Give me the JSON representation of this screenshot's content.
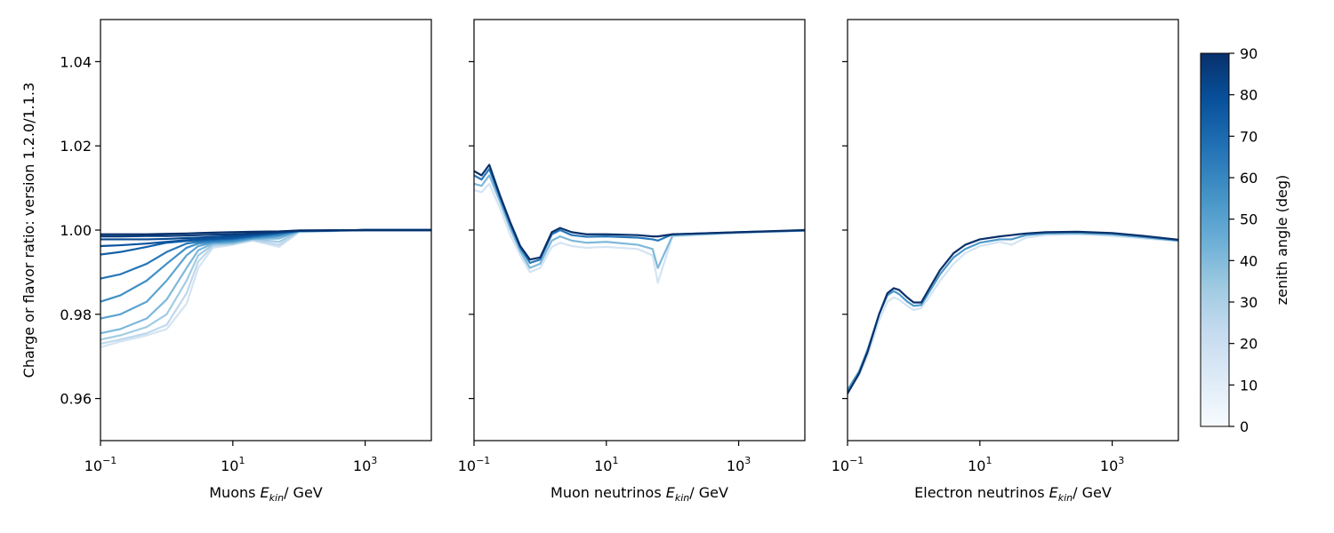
{
  "chart_data": [
    {
      "type": "line",
      "panel": "muons",
      "xscale": "log",
      "xlim": [
        0.1,
        10000
      ],
      "ylim": [
        0.95,
        1.05
      ],
      "xlabel_prefix": "Muons ",
      "xlabel_var": "E",
      "xlabel_sub": "kin",
      "xlabel_suffix": "/ GeV",
      "ylabel": "Charge or flavor ratio: version 1.2.0/1.1.3",
      "xticks": [
        {
          "value": 0.1,
          "base": "10",
          "exp": "−1"
        },
        {
          "value": 10,
          "base": "10",
          "exp": "1"
        },
        {
          "value": 1000,
          "base": "10",
          "exp": "3"
        }
      ],
      "yticks": [
        "0.96",
        "0.98",
        "1.00",
        "1.02",
        "1.04"
      ],
      "x": [
        0.1,
        0.2,
        0.5,
        1,
        2,
        3,
        5,
        10,
        20,
        50,
        100,
        1000,
        10000
      ],
      "series": [
        {
          "zenith": 0,
          "values": [
            0.9722,
            0.9735,
            0.975,
            0.9765,
            0.9825,
            0.991,
            0.9958,
            0.9965,
            0.9975,
            0.996,
            0.9995,
            1.0,
            1.0
          ]
        },
        {
          "zenith": 10,
          "values": [
            0.973,
            0.974,
            0.9755,
            0.9775,
            0.985,
            0.9925,
            0.9962,
            0.9967,
            0.9976,
            0.9965,
            0.9996,
            1.0,
            1.0
          ]
        },
        {
          "zenith": 20,
          "values": [
            0.974,
            0.975,
            0.977,
            0.98,
            0.988,
            0.994,
            0.9965,
            0.9968,
            0.9978,
            0.9972,
            0.9996,
            1.0,
            1.0
          ]
        },
        {
          "zenith": 30,
          "values": [
            0.9755,
            0.9765,
            0.979,
            0.9835,
            0.991,
            0.9952,
            0.9968,
            0.997,
            0.9979,
            0.998,
            0.9997,
            1.0,
            1.0
          ]
        },
        {
          "zenith": 40,
          "values": [
            0.979,
            0.98,
            0.983,
            0.988,
            0.994,
            0.9962,
            0.997,
            0.9972,
            0.998,
            0.9985,
            0.9997,
            1.0,
            1.0
          ]
        },
        {
          "zenith": 50,
          "values": [
            0.983,
            0.9845,
            0.988,
            0.992,
            0.9958,
            0.9968,
            0.9972,
            0.9975,
            0.9982,
            0.9988,
            0.9998,
            1.0,
            1.0
          ]
        },
        {
          "zenith": 60,
          "values": [
            0.9885,
            0.9895,
            0.992,
            0.9948,
            0.9968,
            0.9972,
            0.9975,
            0.9978,
            0.9984,
            0.9991,
            0.9998,
            1.0,
            1.0
          ]
        },
        {
          "zenith": 70,
          "values": [
            0.9942,
            0.9948,
            0.996,
            0.997,
            0.9974,
            0.9976,
            0.9978,
            0.998,
            0.9986,
            0.9993,
            0.9998,
            1.0,
            1.0
          ]
        },
        {
          "zenith": 75,
          "values": [
            0.9962,
            0.9964,
            0.9968,
            0.9972,
            0.9976,
            0.9978,
            0.998,
            0.9982,
            0.9988,
            0.9994,
            0.9998,
            1.0,
            1.0
          ]
        },
        {
          "zenith": 80,
          "values": [
            0.9978,
            0.9978,
            0.9978,
            0.9979,
            0.9981,
            0.9982,
            0.9984,
            0.9986,
            0.999,
            0.9995,
            0.9998,
            1.0,
            1.0
          ]
        },
        {
          "zenith": 85,
          "values": [
            0.9985,
            0.9985,
            0.9986,
            0.9986,
            0.9987,
            0.9988,
            0.9989,
            0.999,
            0.9992,
            0.9996,
            0.9999,
            1.0,
            1.0
          ]
        },
        {
          "zenith": 90,
          "values": [
            0.999,
            0.999,
            0.999,
            0.9991,
            0.9992,
            0.9993,
            0.9994,
            0.9995,
            0.9996,
            0.9997,
            0.9999,
            1.0,
            1.0
          ]
        }
      ]
    },
    {
      "type": "line",
      "panel": "muon-neutrinos",
      "xscale": "log",
      "xlim": [
        0.1,
        10000
      ],
      "ylim": [
        0.95,
        1.05
      ],
      "xlabel_prefix": "Muon neutrinos ",
      "xlabel_var": "E",
      "xlabel_sub": "kin",
      "xlabel_suffix": "/ GeV",
      "xticks": [
        {
          "value": 0.1,
          "base": "10",
          "exp": "−1"
        },
        {
          "value": 10,
          "base": "10",
          "exp": "1"
        },
        {
          "value": 1000,
          "base": "10",
          "exp": "3"
        }
      ],
      "x": [
        0.1,
        0.13,
        0.17,
        0.25,
        0.35,
        0.5,
        0.7,
        1,
        1.5,
        2,
        3,
        5,
        10,
        30,
        50,
        60,
        100,
        1000,
        10000
      ],
      "series": [
        {
          "zenith": 0,
          "values": [
            1.0095,
            1.009,
            1.011,
            1.005,
            0.999,
            0.994,
            0.99,
            0.991,
            0.996,
            0.997,
            0.9962,
            0.9958,
            0.996,
            0.9955,
            0.994,
            0.9875,
            0.9985,
            0.9993,
            0.9998
          ]
        },
        {
          "zenith": 30,
          "values": [
            1.011,
            1.0105,
            1.013,
            1.0065,
            1.0005,
            0.995,
            0.991,
            0.992,
            0.9975,
            0.9985,
            0.9975,
            0.997,
            0.9972,
            0.9965,
            0.9955,
            0.991,
            0.9987,
            0.9994,
            0.9999
          ]
        },
        {
          "zenith": 60,
          "values": [
            1.013,
            1.012,
            1.0145,
            1.0075,
            1.0015,
            0.9958,
            0.9922,
            0.993,
            0.999,
            1.0,
            0.9988,
            0.9984,
            0.9985,
            0.9982,
            0.9978,
            0.9975,
            0.999,
            0.9995,
            0.9999
          ]
        },
        {
          "zenith": 90,
          "values": [
            1.014,
            1.013,
            1.0155,
            1.008,
            1.002,
            0.9962,
            0.993,
            0.9935,
            0.9995,
            1.0005,
            0.9995,
            0.999,
            0.999,
            0.9988,
            0.9985,
            0.9985,
            0.999,
            0.9995,
            1.0
          ]
        }
      ]
    },
    {
      "type": "line",
      "panel": "electron-neutrinos",
      "xscale": "log",
      "xlim": [
        0.1,
        10000
      ],
      "ylim": [
        0.95,
        1.05
      ],
      "xlabel_prefix": "Electron neutrinos ",
      "xlabel_var": "E",
      "xlabel_sub": "kin",
      "xlabel_suffix": "/ GeV",
      "xticks": [
        {
          "value": 0.1,
          "base": "10",
          "exp": "−1"
        },
        {
          "value": 10,
          "base": "10",
          "exp": "1"
        },
        {
          "value": 1000,
          "base": "10",
          "exp": "3"
        }
      ],
      "x": [
        0.1,
        0.15,
        0.2,
        0.3,
        0.4,
        0.5,
        0.6,
        0.8,
        1,
        1.3,
        1.7,
        2.5,
        4,
        6,
        10,
        20,
        30,
        50,
        100,
        300,
        1000,
        3000,
        10000
      ],
      "series": [
        {
          "zenith": 0,
          "values": [
            0.9618,
            0.9655,
            0.97,
            0.9785,
            0.983,
            0.984,
            0.9835,
            0.982,
            0.981,
            0.9815,
            0.984,
            0.988,
            0.992,
            0.9945,
            0.9962,
            0.9972,
            0.9965,
            0.9982,
            0.9988,
            0.999,
            0.9986,
            0.998,
            0.9974
          ]
        },
        {
          "zenith": 45,
          "values": [
            0.962,
            0.9665,
            0.9715,
            0.98,
            0.9845,
            0.9855,
            0.9848,
            0.983,
            0.982,
            0.9822,
            0.9852,
            0.9895,
            0.9935,
            0.9955,
            0.997,
            0.9978,
            0.9978,
            0.9988,
            0.9992,
            0.9993,
            0.999,
            0.9983,
            0.9975
          ]
        },
        {
          "zenith": 90,
          "values": [
            0.9612,
            0.966,
            0.971,
            0.98,
            0.985,
            0.9862,
            0.9858,
            0.984,
            0.9828,
            0.9828,
            0.986,
            0.9905,
            0.9945,
            0.9965,
            0.9978,
            0.9985,
            0.9988,
            0.9992,
            0.9995,
            0.9996,
            0.9993,
            0.9986,
            0.9977
          ]
        }
      ]
    }
  ],
  "colorbar": {
    "label": "zenith angle (deg)",
    "min": 0,
    "max": 90,
    "ticks": [
      "0",
      "10",
      "20",
      "30",
      "40",
      "50",
      "60",
      "70",
      "80",
      "90"
    ],
    "colormap": "Blues",
    "color_low": "#f7fbff",
    "color_high": "#08306b"
  }
}
